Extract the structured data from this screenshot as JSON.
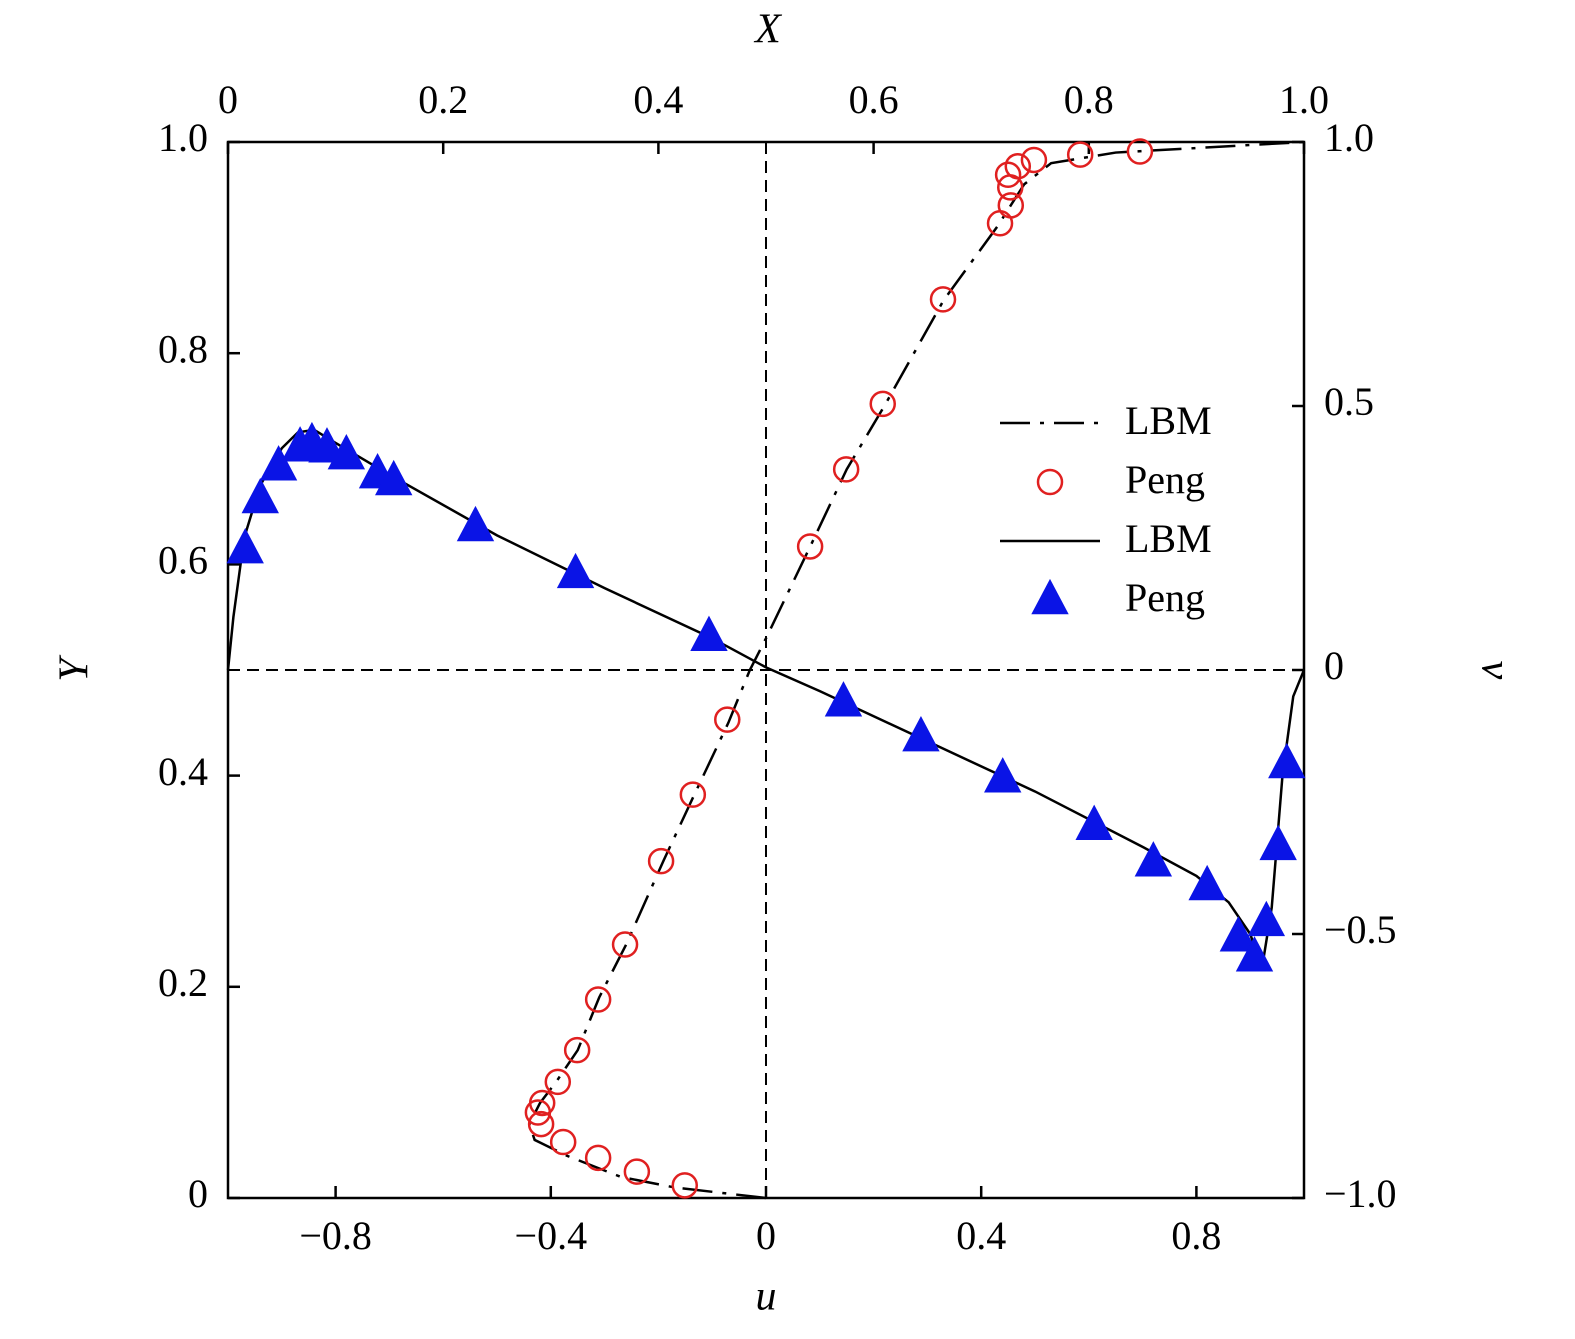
{
  "chart_data": {
    "type": "line",
    "xlabel": "u",
    "ylabel": "Y",
    "x2label": "X",
    "y2label": "v",
    "xlim": [
      -1,
      1
    ],
    "xticks": [
      {
        "value": -0.8,
        "label": "−0.8"
      },
      {
        "value": -0.4,
        "label": "−0.4"
      },
      0,
      0.4,
      0.8
    ],
    "ylim": [
      0,
      1
    ],
    "yticks": [
      0,
      0.2,
      0.4,
      0.6,
      0.8,
      {
        "value": 1,
        "label": "1.0"
      }
    ],
    "x2lim": [
      0,
      1
    ],
    "x2ticks": [
      0,
      0.2,
      0.4,
      0.6,
      0.8,
      {
        "value": 1,
        "label": "1.0"
      }
    ],
    "y2lim": [
      -1,
      1
    ],
    "y2ticks": [
      {
        "value": -1,
        "label": "−1.0"
      },
      {
        "value": -0.5,
        "label": "−0.5"
      },
      0,
      0.5,
      {
        "value": 1,
        "label": "1.0"
      }
    ],
    "legend": "right",
    "series": [
      {
        "name": "LBM",
        "color": "#000000",
        "line": "dashdot",
        "x": [
          0,
          -0.17,
          -0.27,
          -0.37,
          -0.43,
          -0.44,
          -0.42,
          -0.39,
          -0.35,
          -0.31,
          -0.26,
          -0.19,
          -0.135,
          -0.07,
          -0.03,
          0,
          0.085,
          0.15,
          0.22,
          0.33,
          0.43,
          0.48,
          0.53,
          0.65,
          1.0
        ],
        "values": [
          0,
          0.01,
          0.02,
          0.04,
          0.055,
          0.07,
          0.09,
          0.11,
          0.14,
          0.19,
          0.24,
          0.32,
          0.38,
          0.45,
          0.5,
          0.53,
          0.62,
          0.69,
          0.75,
          0.85,
          0.92,
          0.96,
          0.98,
          0.99,
          1.0
        ]
      },
      {
        "name": "Peng",
        "color": "#e02020",
        "marker": "circle",
        "x": [
          0.695,
          0.584,
          0.498,
          0.468,
          0.45,
          0.454,
          0.455,
          0.435,
          0.329,
          0.217,
          0.149,
          0.082,
          -0.072,
          -0.136,
          -0.195,
          -0.262,
          -0.312,
          -0.351,
          -0.387,
          -0.416,
          -0.424,
          -0.418,
          -0.377,
          -0.312,
          -0.24,
          -0.151
        ],
        "values": [
          0.991,
          0.988,
          0.983,
          0.977,
          0.969,
          0.957,
          0.94,
          0.923,
          0.851,
          0.752,
          0.69,
          0.617,
          0.453,
          0.382,
          0.319,
          0.24,
          0.188,
          0.14,
          0.11,
          0.09,
          0.081,
          0.07,
          0.053,
          0.038,
          0.025,
          0.012
        ]
      },
      {
        "name": "LBM",
        "color": "#000000",
        "line": "solid",
        "xaxis": "x2",
        "axis": "y2",
        "x": [
          0,
          0.005,
          0.015,
          0.03,
          0.05,
          0.065,
          0.08,
          0.1,
          0.15,
          0.25,
          0.35,
          0.45,
          0.5,
          0.55,
          0.65,
          0.75,
          0.85,
          0.9,
          0.93,
          0.95,
          0.961,
          0.97,
          0.98,
          0.99,
          1.0
        ],
        "values": [
          0,
          0.1,
          0.25,
          0.35,
          0.42,
          0.45,
          0.455,
          0.43,
          0.37,
          0.255,
          0.155,
          0.06,
          0.005,
          -0.04,
          -0.135,
          -0.23,
          -0.335,
          -0.39,
          -0.44,
          -0.5,
          -0.564,
          -0.45,
          -0.2,
          -0.05,
          0
        ]
      },
      {
        "name": "Peng",
        "color": "#0a14e6",
        "marker": "triangle",
        "xaxis": "x2",
        "axis": "y2",
        "x": [
          0.016,
          0.03,
          0.047,
          0.067,
          0.078,
          0.092,
          0.11,
          0.139,
          0.154,
          0.23,
          0.323,
          0.447,
          0.572,
          0.644,
          0.72,
          0.805,
          0.86,
          0.91,
          0.939,
          0.954,
          0.965,
          0.976,
          0.984
        ],
        "values": [
          0.229,
          0.324,
          0.386,
          0.422,
          0.43,
          0.42,
          0.407,
          0.371,
          0.358,
          0.271,
          0.182,
          0.063,
          -0.061,
          -0.127,
          -0.205,
          -0.295,
          -0.364,
          -0.409,
          -0.506,
          -0.544,
          -0.477,
          -0.333,
          -0.178
        ]
      }
    ]
  }
}
